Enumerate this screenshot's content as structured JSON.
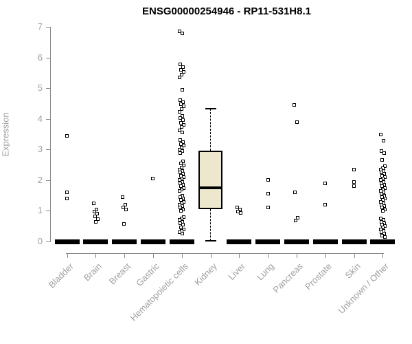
{
  "title": "ENSG00000254946 - RP11-531H8.1",
  "y_axis": {
    "label": "Expression"
  },
  "colors": {
    "axis_line": "#878787",
    "tick_text": "#9f9f9f",
    "point": "#000000",
    "box_fill": "#ece7cd",
    "box_border": "#000000",
    "title_text": "#000000"
  },
  "chart_data": {
    "type": "scatter",
    "subtype": "strip-plot-with-boxplot",
    "title": "ENSG00000254946 - RP11-531H8.1",
    "xlabel": "",
    "ylabel": "Expression",
    "ylim": [
      0,
      7
    ],
    "y_ticks": [
      0,
      1,
      2,
      3,
      4,
      5,
      6,
      7
    ],
    "grid": false,
    "marker": "open-square",
    "legend": "none",
    "categories": [
      "Bladder",
      "Brain",
      "Breast",
      "Gastric",
      "Hematopoietic cells",
      "Kidney",
      "Liver",
      "Lung",
      "Pancreas",
      "Prostate",
      "Skin",
      "Unknown / Other"
    ],
    "series": [
      {
        "category": "Bladder",
        "zero_cluster": true,
        "points": [
          3.45,
          1.6,
          1.4
        ]
      },
      {
        "category": "Brain",
        "zero_cluster": true,
        "points": [
          1.25,
          1.05,
          0.98,
          0.9,
          0.82,
          0.72,
          0.65
        ]
      },
      {
        "category": "Breast",
        "zero_cluster": true,
        "points": [
          1.45,
          1.2,
          1.12,
          1.05,
          0.58
        ]
      },
      {
        "category": "Gastric",
        "zero_cluster": true,
        "points": [
          2.05
        ]
      },
      {
        "category": "Hematopoietic cells",
        "zero_cluster": true,
        "points": [
          6.85,
          6.78,
          5.78,
          5.68,
          5.6,
          5.52,
          5.45,
          5.35,
          4.95,
          4.62,
          4.55,
          4.48,
          4.4,
          4.32,
          4.22,
          4.1,
          4.02,
          3.95,
          3.88,
          3.8,
          3.73,
          3.62,
          3.55,
          3.3,
          3.24,
          3.18,
          3.12,
          3.06,
          3.0,
          2.94,
          2.88,
          2.62,
          2.55,
          2.48,
          2.42,
          2.35,
          2.3,
          2.25,
          2.2,
          2.15,
          2.1,
          2.05,
          2.0,
          1.95,
          1.9,
          1.85,
          1.8,
          1.75,
          1.7,
          1.65,
          1.5,
          1.45,
          1.4,
          1.35,
          1.3,
          1.25,
          1.2,
          1.15,
          1.1,
          1.05,
          1.0,
          0.8,
          0.75,
          0.7,
          0.65,
          0.6,
          0.55,
          0.45,
          0.4,
          0.35,
          0.3,
          0.25
        ]
      },
      {
        "category": "Kidney",
        "zero_cluster": false,
        "points": [],
        "boxplot": {
          "whisker_low": 0.02,
          "q1": 1.05,
          "median": 1.75,
          "q3": 2.97,
          "whisker_high": 4.33
        }
      },
      {
        "category": "Liver",
        "zero_cluster": true,
        "points": [
          1.12,
          1.05,
          0.98,
          0.92
        ]
      },
      {
        "category": "Lung",
        "zero_cluster": true,
        "points": [
          2.0,
          1.55,
          1.1
        ]
      },
      {
        "category": "Pancreas",
        "zero_cluster": true,
        "points": [
          4.45,
          3.9,
          1.6,
          0.78,
          0.68
        ]
      },
      {
        "category": "Prostate",
        "zero_cluster": true,
        "points": [
          1.9,
          1.2
        ]
      },
      {
        "category": "Skin",
        "zero_cluster": true,
        "points": [
          2.35,
          1.95,
          1.8
        ]
      },
      {
        "category": "Unknown / Other",
        "zero_cluster": true,
        "points": [
          3.5,
          3.28,
          2.95,
          2.88,
          2.65,
          2.45,
          2.4,
          2.35,
          2.3,
          2.25,
          2.2,
          2.15,
          2.1,
          2.05,
          2.0,
          1.95,
          1.9,
          1.85,
          1.8,
          1.75,
          1.7,
          1.65,
          1.6,
          1.55,
          1.5,
          1.45,
          1.4,
          1.35,
          1.3,
          1.25,
          1.2,
          1.15,
          1.1,
          1.05,
          1.0,
          0.75,
          0.7,
          0.65,
          0.6,
          0.55,
          0.5,
          0.45,
          0.4,
          0.35,
          0.3,
          0.25,
          0.2,
          0.15
        ]
      }
    ]
  }
}
